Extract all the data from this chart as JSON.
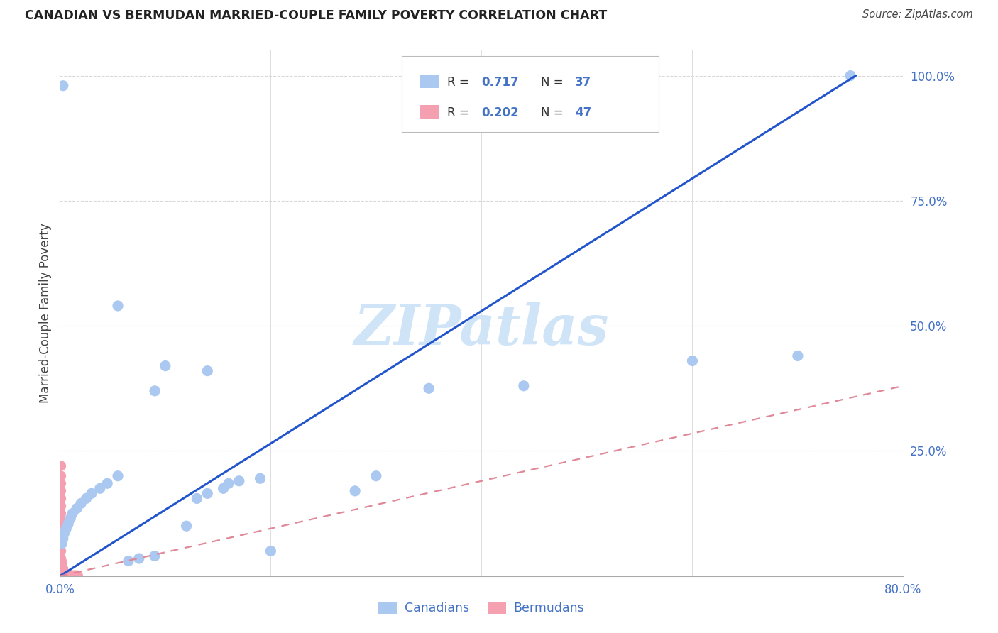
{
  "title": "CANADIAN VS BERMUDAN MARRIED-COUPLE FAMILY POVERTY CORRELATION CHART",
  "source": "Source: ZipAtlas.com",
  "ylabel": "Married-Couple Family Poverty",
  "xlim": [
    0,
    0.8
  ],
  "ylim": [
    0,
    1.05
  ],
  "canadian_color": "#aac8f0",
  "bermuda_color": "#f4a0b0",
  "canadian_line_color": "#2255cc",
  "bermuda_line_color": "#e08898",
  "canadian_R": "0.717",
  "canadian_N": "37",
  "bermuda_R": "0.202",
  "bermuda_N": "47",
  "legend_labels": [
    "Canadians",
    "Bermudans"
  ],
  "title_color": "#222222",
  "axis_tick_color": "#4472c4",
  "grid_color": "#d8d8d8",
  "watermark": "ZIPatlas",
  "watermark_color": "#d0e4f7",
  "canadian_x": [
    0.003,
    0.055,
    0.1,
    0.14,
    0.09,
    0.055,
    0.045,
    0.038,
    0.03,
    0.025,
    0.02,
    0.016,
    0.012,
    0.01,
    0.008,
    0.006,
    0.004,
    0.003,
    0.002,
    0.3,
    0.19,
    0.17,
    0.16,
    0.155,
    0.14,
    0.13,
    0.35,
    0.6,
    0.44,
    0.7,
    0.2,
    0.09,
    0.075,
    0.065,
    0.28,
    0.12,
    0.75
  ],
  "canadian_y": [
    0.98,
    0.54,
    0.42,
    0.41,
    0.37,
    0.2,
    0.185,
    0.175,
    0.165,
    0.155,
    0.145,
    0.135,
    0.125,
    0.115,
    0.105,
    0.095,
    0.085,
    0.075,
    0.065,
    0.2,
    0.195,
    0.19,
    0.185,
    0.175,
    0.165,
    0.155,
    0.375,
    0.43,
    0.38,
    0.44,
    0.05,
    0.04,
    0.035,
    0.03,
    0.17,
    0.1,
    1.0
  ],
  "bermuda_x": [
    0.001,
    0.001,
    0.001,
    0.001,
    0.001,
    0.001,
    0.001,
    0.001,
    0.001,
    0.001,
    0.001,
    0.001,
    0.001,
    0.002,
    0.002,
    0.003,
    0.003,
    0.004,
    0.004,
    0.005,
    0.006,
    0.007,
    0.008,
    0.009,
    0.01,
    0.011,
    0.012,
    0.013,
    0.014,
    0.015,
    0.016,
    0.017,
    0.001,
    0.001,
    0.001,
    0.001,
    0.001,
    0.001,
    0.001,
    0.001,
    0.001,
    0.001,
    0.001,
    0.001,
    0.001,
    0.001,
    0.001
  ],
  "bermuda_y": [
    0.22,
    0.2,
    0.185,
    0.17,
    0.155,
    0.14,
    0.125,
    0.11,
    0.095,
    0.08,
    0.065,
    0.05,
    0.035,
    0.028,
    0.02,
    0.015,
    0.01,
    0.007,
    0.005,
    0.003,
    0.002,
    0.001,
    0.001,
    0.001,
    0.001,
    0.001,
    0.001,
    0.001,
    0.001,
    0.001,
    0.001,
    0.001,
    0.001,
    0.001,
    0.001,
    0.001,
    0.001,
    0.001,
    0.001,
    0.001,
    0.001,
    0.001,
    0.001,
    0.001,
    0.001,
    0.001,
    0.001
  ],
  "can_line_x": [
    0.0,
    0.755
  ],
  "can_line_y": [
    0.0,
    1.0
  ],
  "berm_line_x": [
    0.0,
    0.8
  ],
  "berm_line_y": [
    0.0,
    0.38
  ]
}
